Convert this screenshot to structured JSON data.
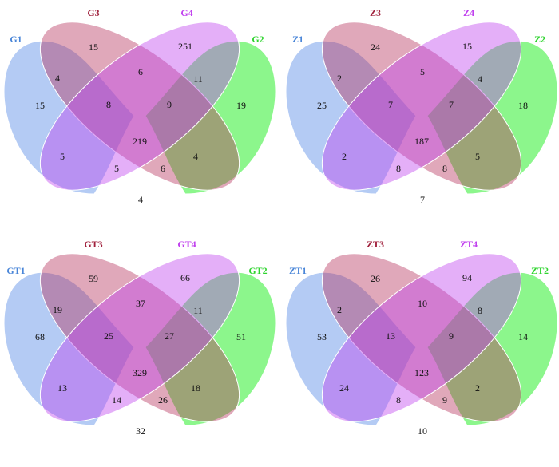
{
  "colors": {
    "set1": "#6f9bea",
    "set2": "#22ee22",
    "set3": "#b4305a",
    "set4": "#bf40ee",
    "label1": "#4a86d8",
    "label2": "#2fd42f",
    "label3": "#a0203c",
    "label4": "#c040ee"
  },
  "diagrams": [
    {
      "labels": {
        "s1": "G1",
        "s2": "G2",
        "s3": "G3",
        "s4": "G4"
      },
      "counts": {
        "only1": "15",
        "only3": "15",
        "only4": "251",
        "only2": "19",
        "r13": "4",
        "r34": "6",
        "r42": "11",
        "r134": "8",
        "r342": "9",
        "all": "219",
        "r14": "5",
        "r1_4_2": "5",
        "r132": "6",
        "r32": "4",
        "r12": "4"
      }
    },
    {
      "labels": {
        "s1": "Z1",
        "s2": "Z2",
        "s3": "Z3",
        "s4": "Z4"
      },
      "counts": {
        "only1": "25",
        "only3": "24",
        "only4": "15",
        "only2": "18",
        "r13": "2",
        "r34": "5",
        "r42": "4",
        "r134": "7",
        "r342": "7",
        "all": "187",
        "r14": "2",
        "r1_4_2": "8",
        "r132": "8",
        "r32": "5",
        "r12": "7"
      }
    },
    {
      "labels": {
        "s1": "GT1",
        "s2": "GT2",
        "s3": "GT3",
        "s4": "GT4"
      },
      "counts": {
        "only1": "68",
        "only3": "59",
        "only4": "66",
        "only2": "51",
        "r13": "19",
        "r34": "37",
        "r42": "11",
        "r134": "25",
        "r342": "27",
        "all": "329",
        "r14": "13",
        "r1_4_2": "14",
        "r132": "26",
        "r32": "18",
        "r12": "32"
      }
    },
    {
      "labels": {
        "s1": "ZT1",
        "s2": "ZT2",
        "s3": "ZT3",
        "s4": "ZT4"
      },
      "counts": {
        "only1": "53",
        "only3": "26",
        "only4": "94",
        "only2": "14",
        "r13": "2",
        "r34": "10",
        "r42": "8",
        "r134": "13",
        "r342": "9",
        "all": "123",
        "r14": "24",
        "r1_4_2": "8",
        "r132": "9",
        "r32": "2",
        "r12": "10"
      }
    }
  ]
}
